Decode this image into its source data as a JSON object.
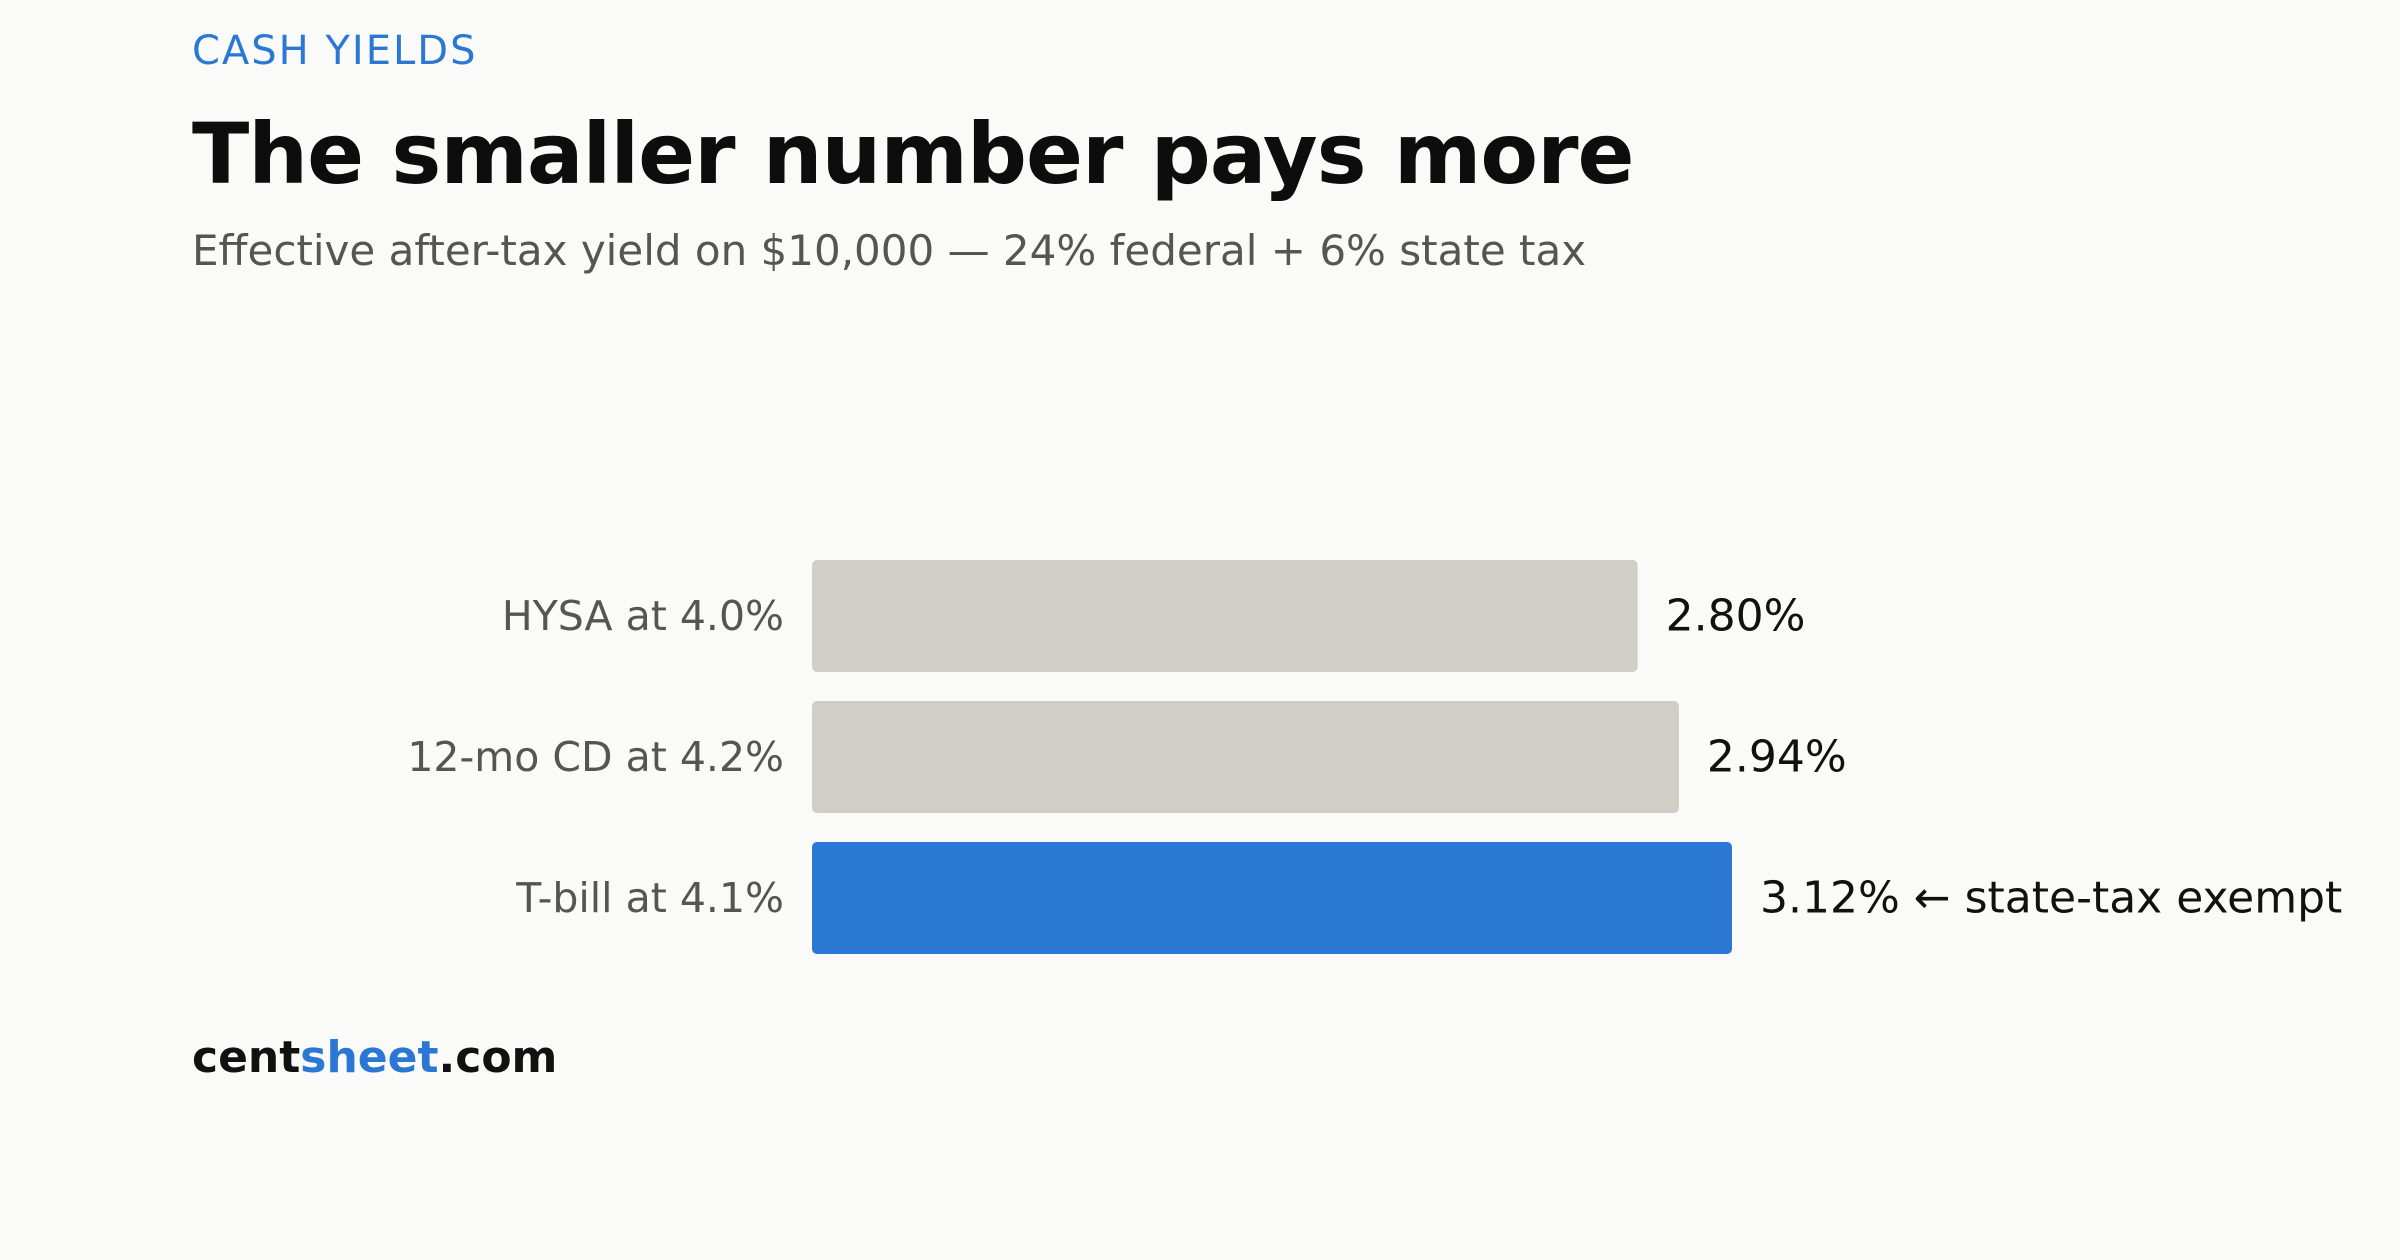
{
  "header": {
    "kicker": "CASH YIELDS",
    "title": "The smaller number pays more",
    "subtitle": "Effective after-tax yield on $10,000 — 24% federal + 6% state tax"
  },
  "chart_data": {
    "type": "bar",
    "orientation": "horizontal",
    "categories": [
      "HYSA at 4.0%",
      "12-mo CD at 4.2%",
      "T-bill at 4.1%"
    ],
    "values": [
      2.8,
      2.94,
      3.12
    ],
    "value_labels": [
      "2.80%",
      "2.94%",
      "3.12% ← state-tax exempt"
    ],
    "highlight_index": 2,
    "xlim": [
      0,
      3.12
    ],
    "grid": false,
    "colors": {
      "default": "#cfcfc8",
      "highlight": "#2b78d4"
    }
  },
  "footer": {
    "brand_part1": "cent",
    "brand_part2": "sheet",
    "brand_part3": ".com"
  }
}
